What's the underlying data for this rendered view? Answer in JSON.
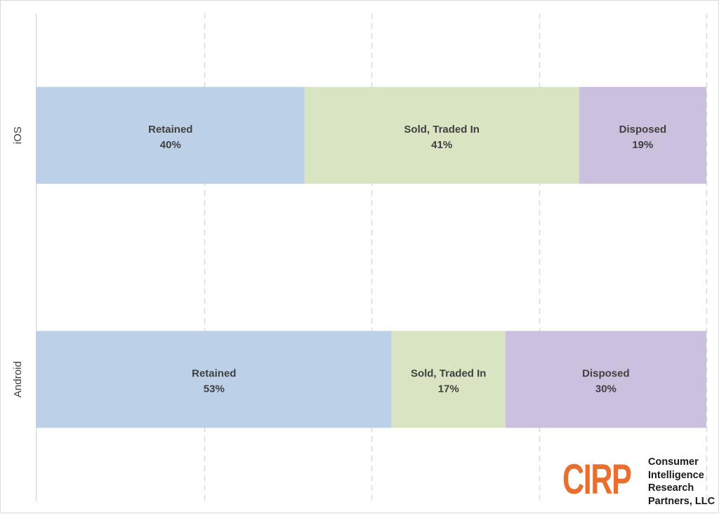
{
  "chart_data": {
    "type": "bar",
    "orientation": "horizontal",
    "stacked": "100%",
    "categories": [
      "iOS",
      "Android"
    ],
    "series": [
      {
        "name": "Retained",
        "values": [
          40,
          53
        ],
        "color": "#bcd0e8"
      },
      {
        "name": "Sold, Traded In",
        "values": [
          41,
          17
        ],
        "color": "#d9e5c2"
      },
      {
        "name": "Disposed",
        "values": [
          19,
          30
        ],
        "color": "#cbc0dd"
      }
    ],
    "data_labels": [
      [
        "40%",
        "41%",
        "19%"
      ],
      [
        "53%",
        "17%",
        "30%"
      ]
    ],
    "xlim": [
      0,
      100
    ],
    "gridlines": "vertical-dashed",
    "legend": "none"
  },
  "logo": {
    "mark": "CIRP",
    "name_lines": [
      "Consumer",
      "Intelligence",
      "Research",
      "Partners, LLC"
    ],
    "color": "#e86f2e"
  }
}
